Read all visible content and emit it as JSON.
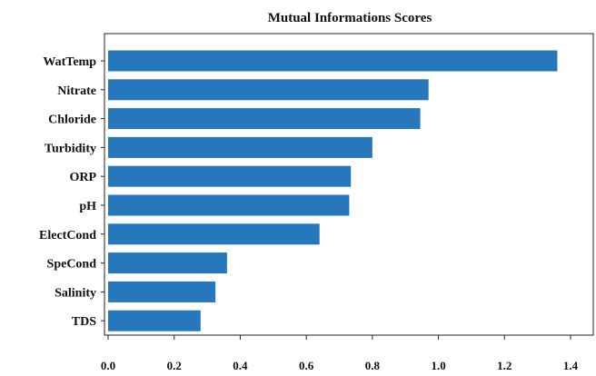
{
  "colors": {
    "bar": "#2677bb",
    "axis": "#222222"
  },
  "chart_data": {
    "type": "bar",
    "orientation": "horizontal",
    "title": "Mutual Informations Scores",
    "xlabel": "",
    "ylabel": "",
    "categories": [
      "WatTemp",
      "Nitrate",
      "Chloride",
      "Turbidity",
      "ORP",
      "pH",
      "ElectCond",
      "SpeCond",
      "Salinity",
      "TDS"
    ],
    "values": [
      1.36,
      0.97,
      0.945,
      0.8,
      0.735,
      0.73,
      0.64,
      0.36,
      0.325,
      0.28
    ],
    "xlim": [
      0.0,
      1.4
    ],
    "xticks": [
      "0.0",
      "0.2",
      "0.4",
      "0.6",
      "0.8",
      "1.0",
      "1.2",
      "1.4"
    ],
    "grid": false,
    "legend": "none"
  }
}
